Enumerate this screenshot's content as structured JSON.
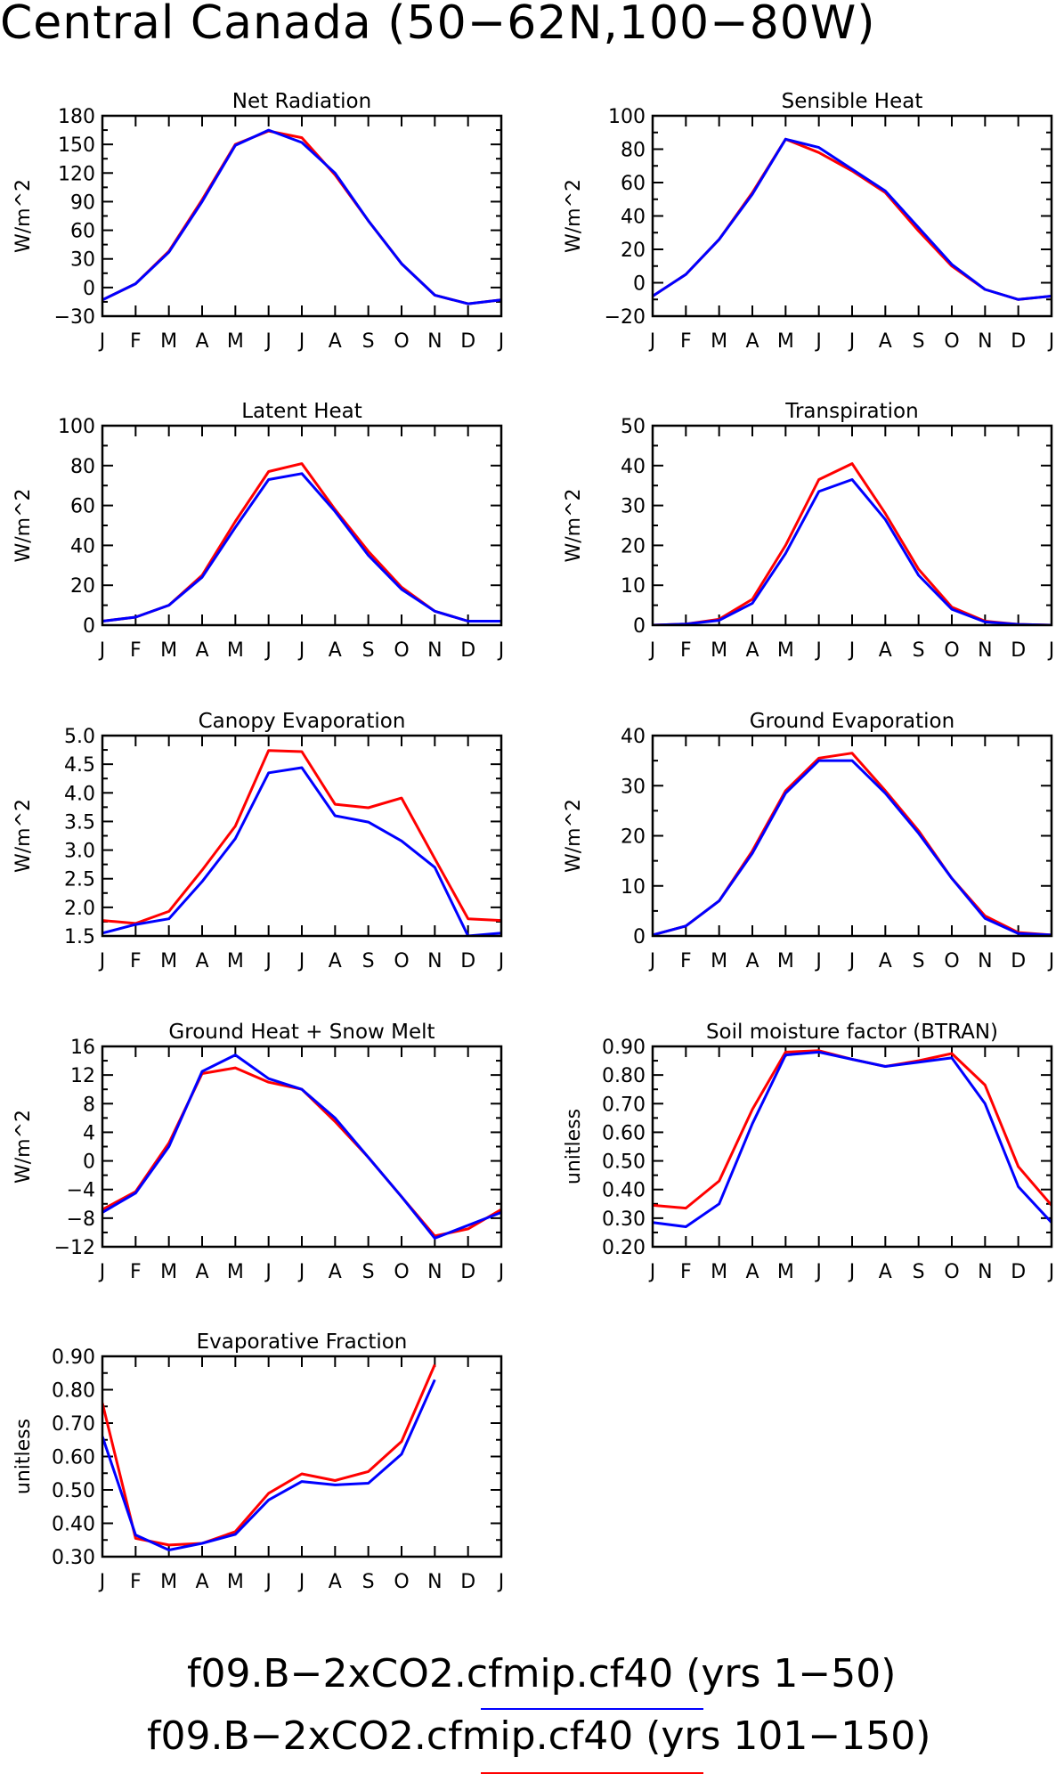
{
  "page_title": "Central Canada (50−62N,100−80W)",
  "colors": {
    "run1": "#0000ff",
    "run2": "#ff0000",
    "axis": "#000000"
  },
  "legend": [
    {
      "label": "f09.B−2xCO2.cfmip.cf40 (yrs 1−50)",
      "color": "#0000ff"
    },
    {
      "label": "f09.B−2xCO2.cfmip.cf40 (yrs 101−150)",
      "color": "#ff0000"
    }
  ],
  "chart_data": [
    {
      "type": "line",
      "title": "Net Radiation",
      "ylabel": "W/m^2",
      "ylim": [
        -30,
        180
      ],
      "yticks": [
        "−30",
        "0",
        "30",
        "60",
        "90",
        "120",
        "150",
        "180"
      ],
      "ytick_values": [
        -30,
        0,
        30,
        60,
        90,
        120,
        150,
        180
      ],
      "categories": [
        "J",
        "F",
        "M",
        "A",
        "M",
        "J",
        "J",
        "A",
        "S",
        "O",
        "N",
        "D",
        "J"
      ],
      "series": [
        {
          "color": "#ff0000",
          "values": [
            -13,
            4,
            38,
            92,
            150,
            164,
            157,
            118,
            70,
            25,
            -8,
            -17,
            -13
          ]
        },
        {
          "color": "#0000ff",
          "values": [
            -13,
            4,
            37,
            90,
            149,
            165,
            152,
            120,
            70,
            25,
            -8,
            -17,
            -13
          ]
        }
      ]
    },
    {
      "type": "line",
      "title": "Sensible Heat",
      "ylabel": "W/m^2",
      "ylim": [
        -20,
        100
      ],
      "yticks": [
        "−20",
        "0",
        "20",
        "40",
        "60",
        "80",
        "100"
      ],
      "ytick_values": [
        -20,
        0,
        20,
        40,
        60,
        80,
        100
      ],
      "categories": [
        "J",
        "F",
        "M",
        "A",
        "M",
        "J",
        "J",
        "A",
        "S",
        "O",
        "N",
        "D",
        "J"
      ],
      "series": [
        {
          "color": "#ff0000",
          "values": [
            -8,
            5,
            26,
            54,
            86,
            78,
            67,
            54,
            31,
            10,
            -4,
            -10,
            -8
          ]
        },
        {
          "color": "#0000ff",
          "values": [
            -8,
            5,
            26,
            53,
            86,
            81,
            68,
            55,
            33,
            11,
            -4,
            -10,
            -8
          ]
        }
      ]
    },
    {
      "type": "line",
      "title": "Latent Heat",
      "ylabel": "W/m^2",
      "ylim": [
        0,
        100
      ],
      "yticks": [
        "0",
        "20",
        "40",
        "60",
        "80",
        "100"
      ],
      "ytick_values": [
        0,
        20,
        40,
        60,
        80,
        100
      ],
      "categories": [
        "J",
        "F",
        "M",
        "A",
        "M",
        "J",
        "J",
        "A",
        "S",
        "O",
        "N",
        "D",
        "J"
      ],
      "series": [
        {
          "color": "#ff0000",
          "values": [
            2,
            4,
            10,
            25,
            52,
            77,
            81,
            58,
            37,
            19,
            7,
            2,
            2
          ]
        },
        {
          "color": "#0000ff",
          "values": [
            2,
            4,
            10,
            24,
            49,
            73,
            76,
            57,
            35,
            18,
            7,
            2,
            2
          ]
        }
      ]
    },
    {
      "type": "line",
      "title": "Transpiration",
      "ylabel": "W/m^2",
      "ylim": [
        0,
        50
      ],
      "yticks": [
        "0",
        "10",
        "20",
        "30",
        "40",
        "50"
      ],
      "ytick_values": [
        0,
        10,
        20,
        30,
        40,
        50
      ],
      "categories": [
        "J",
        "F",
        "M",
        "A",
        "M",
        "J",
        "J",
        "A",
        "S",
        "O",
        "N",
        "D",
        "J"
      ],
      "series": [
        {
          "color": "#ff0000",
          "values": [
            0,
            0.3,
            1.5,
            6.5,
            20,
            36.5,
            40.5,
            28,
            14,
            4.5,
            1,
            0.2,
            0
          ]
        },
        {
          "color": "#0000ff",
          "values": [
            0,
            0.3,
            1.2,
            5.5,
            18,
            33.5,
            36.5,
            26.5,
            12.5,
            4,
            0.8,
            0.2,
            0
          ]
        }
      ]
    },
    {
      "type": "line",
      "title": "Canopy Evaporation",
      "ylabel": "W/m^2",
      "ylim": [
        1.5,
        5.0
      ],
      "yticks": [
        "1.5",
        "2.0",
        "2.5",
        "3.0",
        "3.5",
        "4.0",
        "4.5",
        "5.0"
      ],
      "ytick_values": [
        1.5,
        2.0,
        2.5,
        3.0,
        3.5,
        4.0,
        4.5,
        5.0
      ],
      "categories": [
        "J",
        "F",
        "M",
        "A",
        "M",
        "J",
        "J",
        "A",
        "S",
        "O",
        "N",
        "D",
        "J"
      ],
      "series": [
        {
          "color": "#ff0000",
          "values": [
            1.77,
            1.72,
            1.93,
            2.65,
            3.42,
            4.74,
            4.72,
            3.8,
            3.74,
            3.91,
            2.85,
            1.8,
            1.77
          ]
        },
        {
          "color": "#0000ff",
          "values": [
            1.55,
            1.7,
            1.8,
            2.45,
            3.2,
            4.35,
            4.44,
            3.6,
            3.49,
            3.16,
            2.7,
            1.5,
            1.55
          ]
        }
      ]
    },
    {
      "type": "line",
      "title": "Ground Evaporation",
      "ylabel": "W/m^2",
      "ylim": [
        0,
        40
      ],
      "yticks": [
        "0",
        "10",
        "20",
        "30",
        "40"
      ],
      "ytick_values": [
        0,
        10,
        20,
        30,
        40
      ],
      "categories": [
        "J",
        "F",
        "M",
        "A",
        "M",
        "J",
        "J",
        "A",
        "S",
        "O",
        "N",
        "D",
        "J"
      ],
      "series": [
        {
          "color": "#ff0000",
          "values": [
            0.2,
            2,
            7,
            17,
            29,
            35.5,
            36.5,
            29,
            21,
            11.5,
            4,
            0.7,
            0.2
          ]
        },
        {
          "color": "#0000ff",
          "values": [
            0.2,
            2,
            7,
            16.5,
            28.5,
            35,
            35,
            28.5,
            20.5,
            11.5,
            3.5,
            0.5,
            0.2
          ]
        }
      ]
    },
    {
      "type": "line",
      "title": "Ground Heat + Snow Melt",
      "ylabel": "W/m^2",
      "ylim": [
        -12,
        16
      ],
      "yticks": [
        "−12",
        "−8",
        "−4",
        "0",
        "4",
        "8",
        "12",
        "16"
      ],
      "ytick_values": [
        -12,
        -8,
        -4,
        0,
        4,
        8,
        12,
        16
      ],
      "categories": [
        "J",
        "F",
        "M",
        "A",
        "M",
        "J",
        "J",
        "A",
        "S",
        "O",
        "N",
        "D",
        "J"
      ],
      "series": [
        {
          "color": "#ff0000",
          "values": [
            -6.8,
            -4.3,
            2.5,
            12.2,
            13,
            11,
            10,
            5.5,
            0.5,
            -5,
            -10.5,
            -9.5,
            -6.8
          ]
        },
        {
          "color": "#0000ff",
          "values": [
            -7.2,
            -4.5,
            2,
            12.5,
            14.8,
            11.5,
            10,
            6,
            0.5,
            -5,
            -10.8,
            -9,
            -7.2
          ]
        }
      ]
    },
    {
      "type": "line",
      "title": "Soil moisture factor (BTRAN)",
      "ylabel": "unitless",
      "ylim": [
        0.2,
        0.9
      ],
      "yticks": [
        "0.20",
        "0.30",
        "0.40",
        "0.50",
        "0.60",
        "0.70",
        "0.80",
        "0.90"
      ],
      "ytick_values": [
        0.2,
        0.3,
        0.4,
        0.5,
        0.6,
        0.7,
        0.8,
        0.9
      ],
      "categories": [
        "J",
        "F",
        "M",
        "A",
        "M",
        "J",
        "J",
        "A",
        "S",
        "O",
        "N",
        "D",
        "J"
      ],
      "series": [
        {
          "color": "#ff0000",
          "values": [
            0.345,
            0.335,
            0.43,
            0.68,
            0.88,
            0.885,
            0.855,
            0.83,
            0.85,
            0.875,
            0.765,
            0.48,
            0.345
          ]
        },
        {
          "color": "#0000ff",
          "values": [
            0.285,
            0.27,
            0.35,
            0.63,
            0.87,
            0.88,
            0.855,
            0.83,
            0.845,
            0.86,
            0.7,
            0.41,
            0.285
          ]
        }
      ]
    },
    {
      "type": "line",
      "title": "Evaporative Fraction",
      "ylabel": "unitless",
      "ylim": [
        0.3,
        0.9
      ],
      "yticks": [
        "0.30",
        "0.40",
        "0.50",
        "0.60",
        "0.70",
        "0.80",
        "0.90"
      ],
      "ytick_values": [
        0.3,
        0.4,
        0.5,
        0.6,
        0.7,
        0.8,
        0.9
      ],
      "categories": [
        "J",
        "F",
        "M",
        "A",
        "M",
        "J",
        "J",
        "A",
        "S",
        "O",
        "N",
        "D",
        "J"
      ],
      "series": [
        {
          "color": "#ff0000",
          "values": [
            0.76,
            0.355,
            0.335,
            0.34,
            0.375,
            0.49,
            0.548,
            0.528,
            0.555,
            0.645,
            0.875,
            null,
            null
          ]
        },
        {
          "color": "#0000ff",
          "values": [
            0.66,
            0.365,
            0.32,
            0.34,
            0.367,
            0.47,
            0.525,
            0.515,
            0.52,
            0.607,
            0.83,
            null,
            null
          ]
        }
      ]
    }
  ]
}
